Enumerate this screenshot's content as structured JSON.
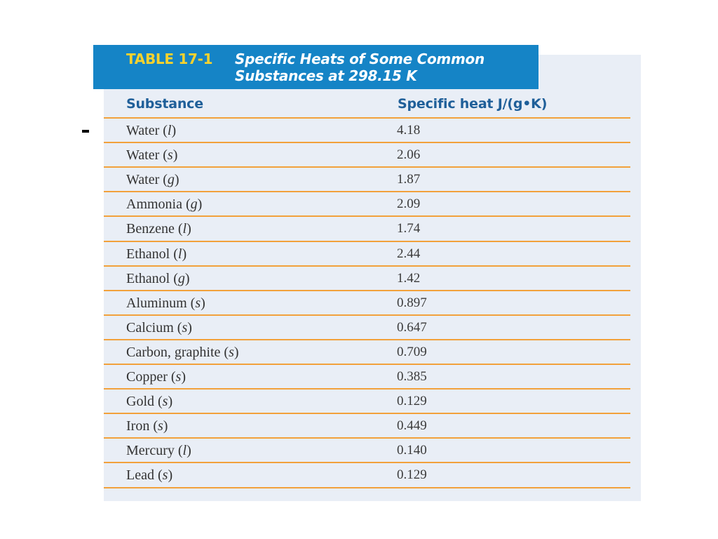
{
  "table": {
    "label": "TABLE 17-1",
    "title_line1": "Specific Heats of Some Common",
    "title_line2": "Substances at 298.15 K",
    "columns": [
      "Substance",
      "Specific heat J/(g•K)"
    ],
    "rows": [
      {
        "name": "Water",
        "phase": "l",
        "value": "4.18"
      },
      {
        "name": "Water",
        "phase": "s",
        "value": "2.06"
      },
      {
        "name": "Water",
        "phase": "g",
        "value": "1.87"
      },
      {
        "name": "Ammonia",
        "phase": "g",
        "value": "2.09"
      },
      {
        "name": "Benzene",
        "phase": "l",
        "value": "1.74"
      },
      {
        "name": "Ethanol",
        "phase": "l",
        "value": "2.44"
      },
      {
        "name": "Ethanol",
        "phase": "g",
        "value": "1.42"
      },
      {
        "name": "Aluminum",
        "phase": "s",
        "value": "0.897"
      },
      {
        "name": "Calcium",
        "phase": "s",
        "value": "0.647"
      },
      {
        "name": "Carbon, graphite",
        "phase": "s",
        "value": "0.709"
      },
      {
        "name": "Copper",
        "phase": "s",
        "value": "0.385"
      },
      {
        "name": "Gold",
        "phase": "s",
        "value": "0.129"
      },
      {
        "name": "Iron",
        "phase": "s",
        "value": "0.449"
      },
      {
        "name": "Mercury",
        "phase": "l",
        "value": "0.140"
      },
      {
        "name": "Lead",
        "phase": "s",
        "value": "0.129"
      }
    ]
  },
  "colors": {
    "header_bg": "#1584c6",
    "label_color": "#f6d22e",
    "title_color": "#ffffff",
    "column_header_color": "#1f5f99",
    "rule_color": "#f2a13b",
    "panel_bg": "#e9eef6"
  }
}
